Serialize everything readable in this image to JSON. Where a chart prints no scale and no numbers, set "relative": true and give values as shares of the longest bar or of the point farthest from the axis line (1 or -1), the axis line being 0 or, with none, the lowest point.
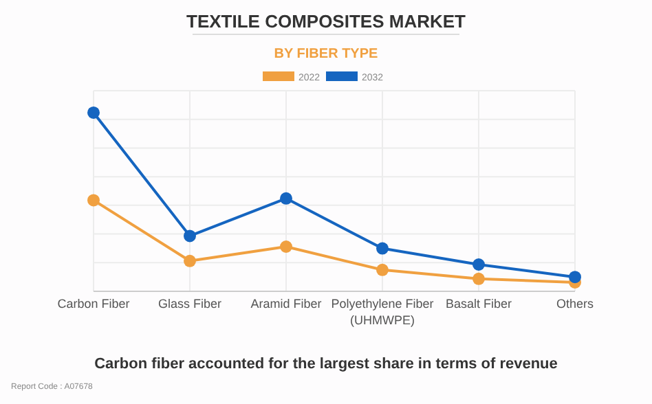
{
  "chart_data": {
    "type": "line",
    "title": "TEXTILE COMPOSITES MARKET",
    "subtitle": "BY FIBER TYPE",
    "categories": [
      "Carbon Fiber",
      "Glass Fiber",
      "Aramid Fiber",
      "Polyethylene Fiber (UHMWPE)",
      "Basalt Fiber",
      "Others"
    ],
    "series": [
      {
        "name": "2022",
        "color": "#f0a040",
        "values": [
          0.51,
          0.17,
          0.25,
          0.12,
          0.07,
          0.05
        ]
      },
      {
        "name": "2032",
        "color": "#1565c0",
        "values": [
          1,
          0.31,
          0.52,
          0.24,
          0.15,
          0.08
        ]
      }
    ],
    "relative": true,
    "grid": true,
    "legend": "top",
    "marker": "circle",
    "line_style": "solid",
    "annotations": [
      "Carbon fiber accounted for the largest share in terms of revenue",
      "Report Code : A07678"
    ]
  }
}
